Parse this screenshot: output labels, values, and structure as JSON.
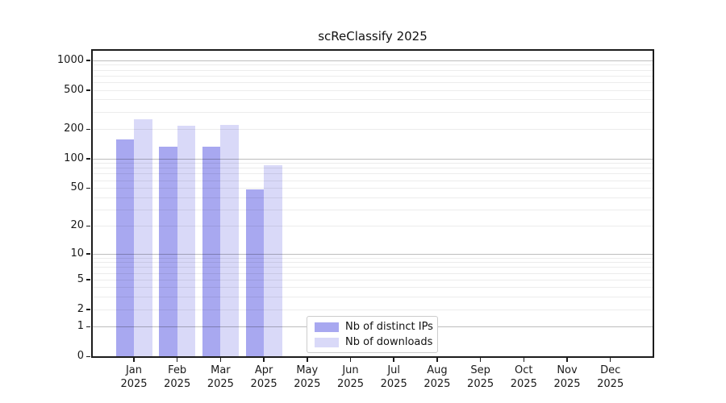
{
  "chart_data": {
    "type": "bar",
    "title": "scReClassify 2025",
    "categories": [
      "Jan 2025",
      "Feb 2025",
      "Mar 2025",
      "Apr 2025",
      "May 2025",
      "Jun 2025",
      "Jul 2025",
      "Aug 2025",
      "Sep 2025",
      "Oct 2025",
      "Nov 2025",
      "Dec 2025"
    ],
    "series": [
      {
        "name": "Nb of distinct IPs",
        "color": "#a8a8f0",
        "values": [
          158,
          133,
          133,
          48,
          0,
          0,
          0,
          0,
          0,
          0,
          0,
          0
        ]
      },
      {
        "name": "Nb of downloads",
        "color": "#d9d9f8",
        "values": [
          250,
          216,
          222,
          86,
          0,
          0,
          0,
          0,
          0,
          0,
          0,
          0
        ]
      }
    ],
    "yscale": "log1p",
    "yticks": [
      0,
      1,
      2,
      5,
      10,
      20,
      50,
      100,
      200,
      500,
      1000
    ],
    "ylim": [
      0,
      1250
    ],
    "grid": "horizontal",
    "legend_position": "lower-center",
    "frame": "full-box"
  }
}
